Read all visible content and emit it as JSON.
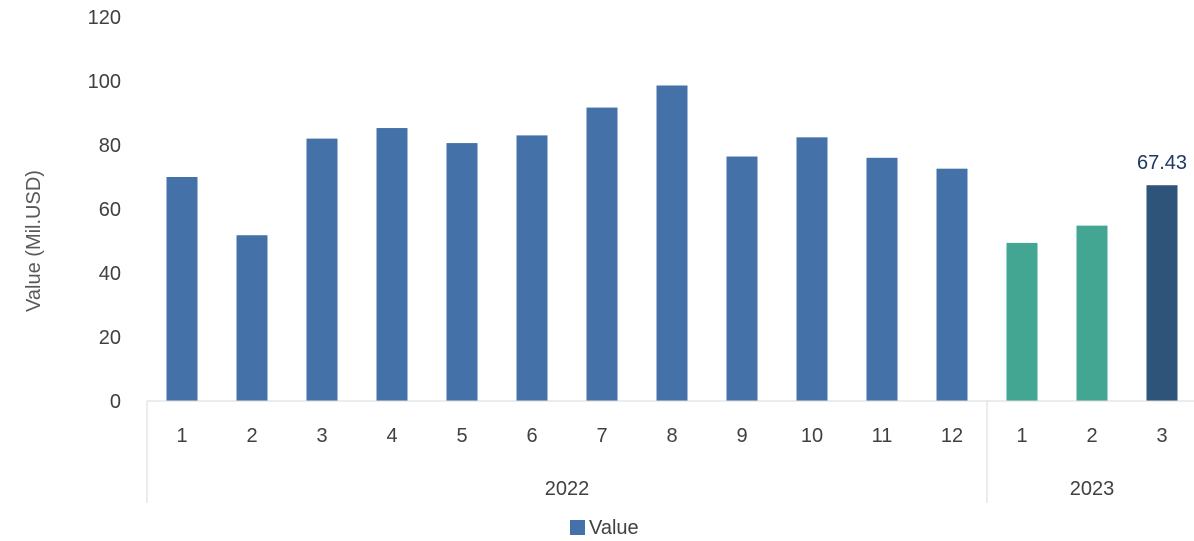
{
  "chart_data": {
    "type": "bar",
    "ylabel": "Value (Mil.USD)",
    "ylim": [
      0,
      120
    ],
    "yticks": [
      0,
      20,
      40,
      60,
      80,
      100,
      120
    ],
    "grid": false,
    "legend": {
      "placement": "bottom",
      "entries": [
        {
          "name": "Value",
          "color": "#4472a8"
        }
      ]
    },
    "groups": [
      {
        "label": "2022",
        "categories": [
          "1",
          "2",
          "3",
          "4",
          "5",
          "6",
          "7",
          "8",
          "9",
          "10",
          "11",
          "12"
        ]
      },
      {
        "label": "2023",
        "categories": [
          "1",
          "2",
          "3"
        ]
      }
    ],
    "series": [
      {
        "name": "Value",
        "values": [
          70,
          51.8,
          82,
          85.3,
          80.6,
          83,
          91.7,
          98.6,
          76.4,
          82.4,
          76,
          72.6,
          49.4,
          54.8,
          67.43
        ],
        "colors": [
          "#4472a8",
          "#4472a8",
          "#4472a8",
          "#4472a8",
          "#4472a8",
          "#4472a8",
          "#4472a8",
          "#4472a8",
          "#4472a8",
          "#4472a8",
          "#4472a8",
          "#4472a8",
          "#43a692",
          "#43a692",
          "#2f5479"
        ]
      }
    ],
    "data_labels": [
      {
        "index": 14,
        "text": "67.43"
      }
    ]
  }
}
